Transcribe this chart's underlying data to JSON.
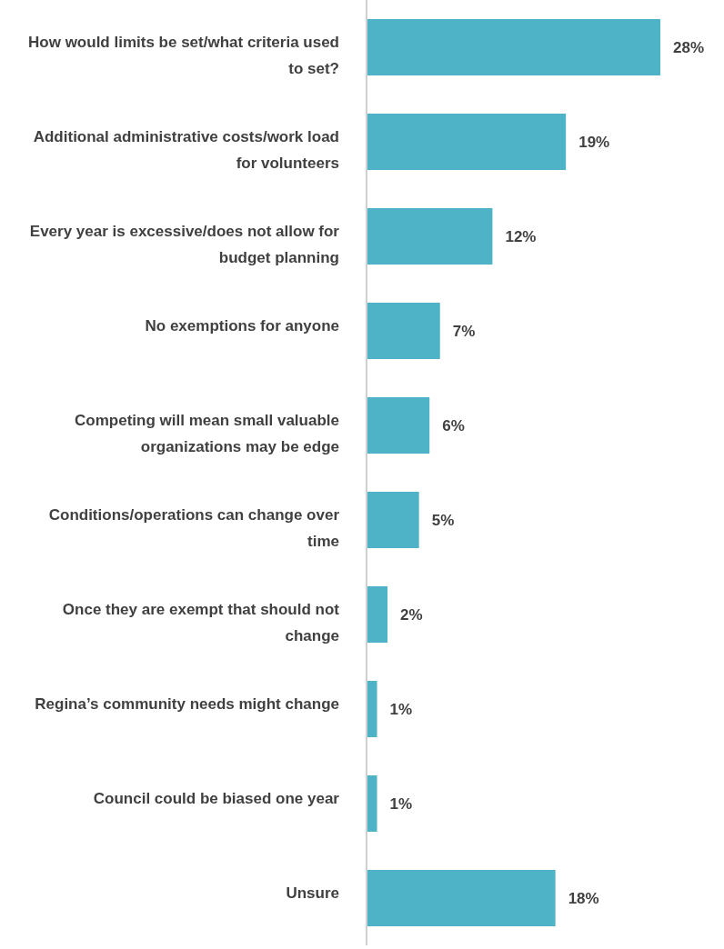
{
  "chart_data": {
    "type": "bar",
    "orientation": "horizontal",
    "categories": [
      "How would limits be set/what criteria used to set?",
      "Additional administrative costs/work load for volunteers",
      "Every year is excessive/does not allow for budget planning",
      "No exemptions for anyone",
      "Competing will mean small valuable organizations may be edge",
      "Conditions/operations can change over time",
      "Once they are exempt that should not change",
      "Regina’s community needs might change",
      "Council could be biased one year",
      "Unsure"
    ],
    "values": [
      28,
      19,
      12,
      7,
      6,
      5,
      2,
      1,
      1,
      18
    ],
    "value_labels": [
      "28%",
      "19%",
      "12%",
      "7%",
      "6%",
      "5%",
      "2%",
      "1%",
      "1%",
      "18%"
    ],
    "color": "#4fb3c8",
    "grid": false,
    "legend": false
  }
}
